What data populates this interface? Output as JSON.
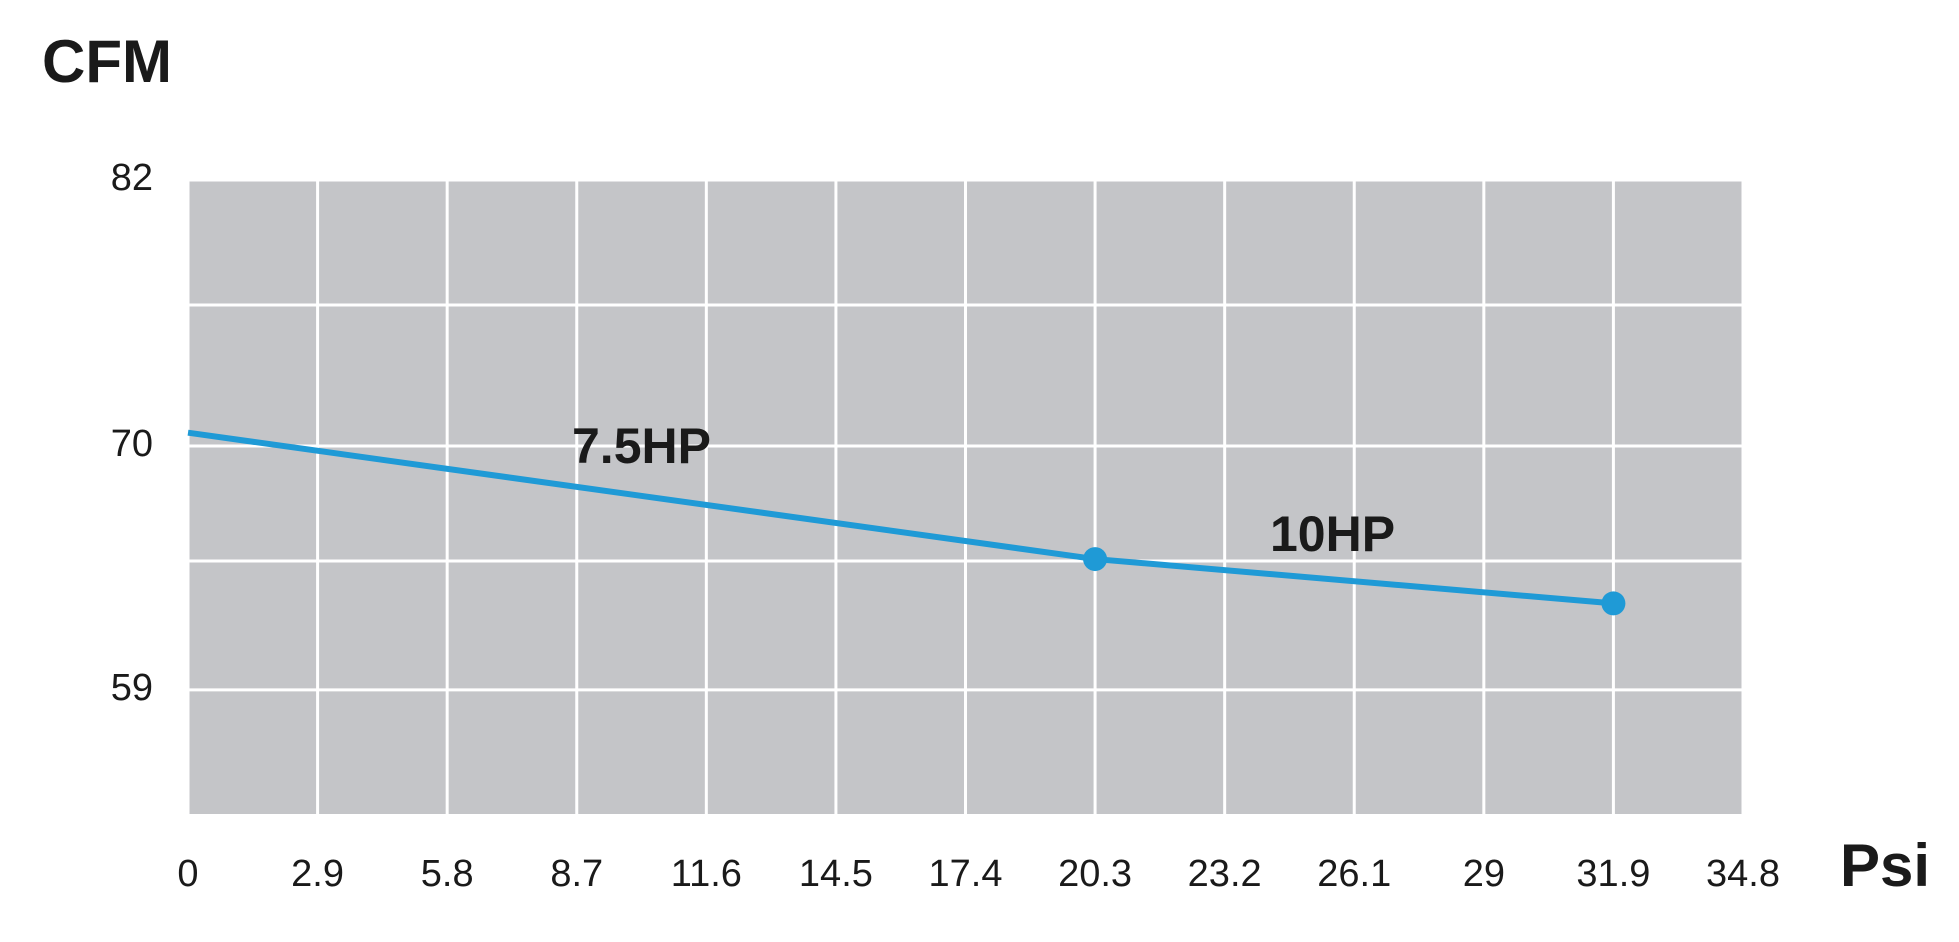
{
  "chart_data": {
    "type": "line",
    "y_label": "CFM",
    "x_label": "Psi",
    "x": [
      0,
      20.3,
      31.9
    ],
    "series": [
      {
        "color": "#1f9ad6",
        "values": [
          70.6,
          64.9,
          62.9
        ],
        "markers": [
          false,
          true,
          true
        ]
      }
    ],
    "annotations": [
      "7.5HP",
      "10HP"
    ],
    "xlim": [
      0,
      34.8
    ],
    "xticks": [
      0,
      2.9,
      5.8,
      8.7,
      11.6,
      14.5,
      17.4,
      20.3,
      23.2,
      26.1,
      29,
      31.9,
      34.8
    ],
    "ylim": [
      53.4,
      82
    ],
    "yticks": [
      59,
      70,
      82
    ],
    "grid": true,
    "plot_background": "#c4c5c8"
  }
}
